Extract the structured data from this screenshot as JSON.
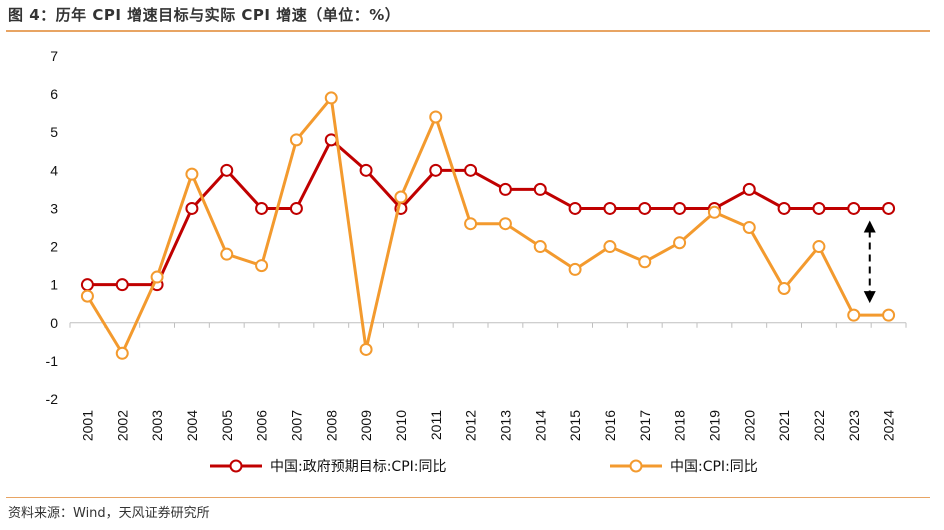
{
  "header": {
    "title": "图 4：历年 CPI 增速目标与实际 CPI 增速（单位：%）"
  },
  "footer": {
    "source": "资料来源：Wind，天风证券研究所"
  },
  "colors": {
    "target": "#c00000",
    "actual": "#f39a2e",
    "accent_rule": "#e8a463"
  },
  "chart_data": {
    "type": "line",
    "title": "",
    "xlabel": "",
    "ylabel": "",
    "ylim": [
      -2,
      7
    ],
    "yticks": [
      -2,
      -1,
      0,
      1,
      2,
      3,
      4,
      5,
      6,
      7
    ],
    "grid": false,
    "legend_position": "bottom",
    "categories": [
      "2001",
      "2002",
      "2003",
      "2004",
      "2005",
      "2006",
      "2007",
      "2008",
      "2009",
      "2010",
      "2011",
      "2012",
      "2013",
      "2014",
      "2015",
      "2016",
      "2017",
      "2018",
      "2019",
      "2020",
      "2021",
      "2022",
      "2023",
      "2024"
    ],
    "series": [
      {
        "name": "中国:政府预期目标:CPI:同比",
        "color": "#c00000",
        "values": [
          1,
          1,
          1,
          3,
          4,
          3,
          3,
          4.8,
          4,
          3,
          4,
          4,
          3.5,
          3.5,
          3,
          3,
          3,
          3,
          3,
          3.5,
          3,
          3,
          3,
          3
        ]
      },
      {
        "name": "中国:CPI:同比",
        "color": "#f39a2e",
        "values": [
          0.7,
          -0.8,
          1.2,
          3.9,
          1.8,
          1.5,
          4.8,
          5.9,
          -0.7,
          3.3,
          5.4,
          2.6,
          2.6,
          2.0,
          1.4,
          2.0,
          1.6,
          2.1,
          2.9,
          2.5,
          0.9,
          2.0,
          0.2,
          0.2
        ]
      }
    ],
    "annotation": {
      "type": "double-arrow-dashed",
      "category": "2023",
      "from": 3,
      "to": 0.2
    }
  }
}
